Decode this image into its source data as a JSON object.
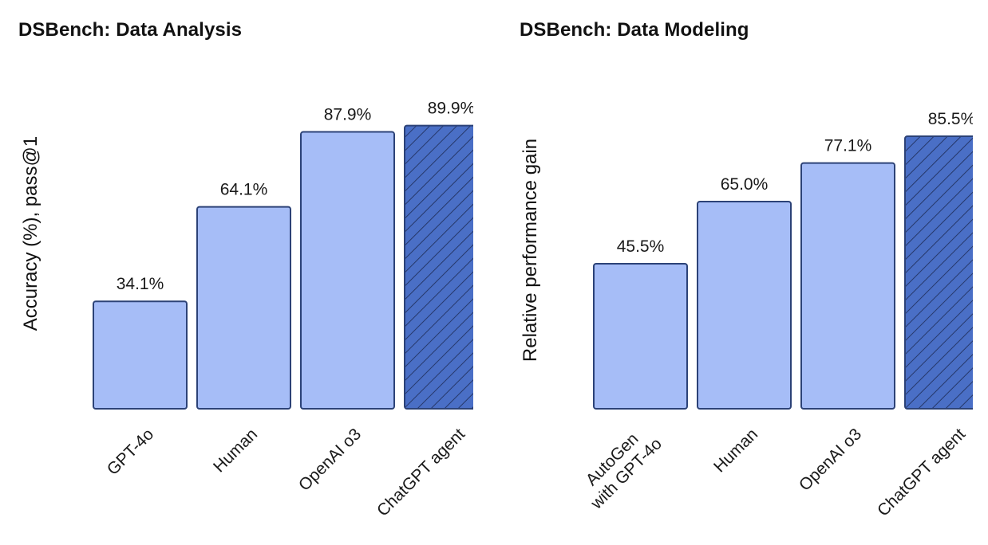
{
  "colors": {
    "bar_fill": "#a6bdf7",
    "bar_stroke": "#2c4277",
    "agent_fill": "#4a6fc6",
    "hatch_stroke": "#26386a"
  },
  "chart_data": [
    {
      "type": "bar",
      "title": "DSBench: Data Analysis",
      "xlabel": "",
      "ylabel": "Accuracy (%), pass@1",
      "categories": [
        "GPT-4o",
        "Human",
        "OpenAI o3",
        "ChatGPT agent"
      ],
      "values": [
        34.1,
        64.1,
        87.9,
        89.9
      ],
      "value_labels": [
        "34.1%",
        "64.1%",
        "87.9%",
        "89.9%"
      ],
      "highlight": "ChatGPT agent",
      "highlight_pattern": "diagonal-hatch",
      "ylim": [
        0,
        90
      ],
      "grid": false,
      "y_ticks_shown": false
    },
    {
      "type": "bar",
      "title": "DSBench: Data Modeling",
      "xlabel": "",
      "ylabel": "Relative performance gain",
      "categories": [
        "AutoGen\nwith GPT-4o",
        "Human",
        "OpenAI o3",
        "ChatGPT agent"
      ],
      "values": [
        45.5,
        65.0,
        77.1,
        85.5
      ],
      "value_labels": [
        "45.5%",
        "65.0%",
        "77.1%",
        "85.5%"
      ],
      "highlight": "ChatGPT agent",
      "highlight_pattern": "diagonal-hatch",
      "ylim": [
        0,
        90
      ],
      "grid": false,
      "y_ticks_shown": false
    }
  ]
}
